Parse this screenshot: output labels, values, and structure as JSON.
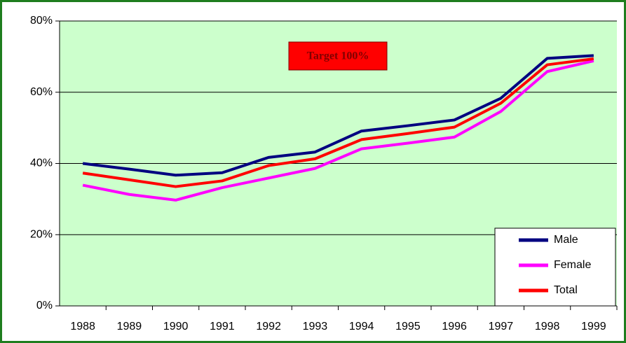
{
  "chart_data": {
    "type": "line",
    "annotation": "Target 100%",
    "categories": [
      "1988",
      "1989",
      "1990",
      "1991",
      "1992",
      "1993",
      "1994",
      "1995",
      "1996",
      "1997",
      "1998",
      "1999"
    ],
    "series": [
      {
        "name": "Male",
        "color": "#000080",
        "values": [
          40.0,
          38.4,
          36.7,
          37.4,
          41.7,
          43.2,
          49.1,
          50.6,
          52.2,
          58.3,
          69.5,
          70.3
        ]
      },
      {
        "name": "Female",
        "color": "#ff00ff",
        "values": [
          33.9,
          31.3,
          29.7,
          33.2,
          35.9,
          38.6,
          44.1,
          45.7,
          47.4,
          54.6,
          65.8,
          68.8
        ]
      },
      {
        "name": "Total",
        "color": "#ff0000",
        "values": [
          37.3,
          35.4,
          33.5,
          35.1,
          39.4,
          41.3,
          46.7,
          48.4,
          50.2,
          56.9,
          67.7,
          69.4
        ]
      }
    ],
    "ylim": [
      0,
      80
    ],
    "yticks": [
      {
        "value": 0,
        "label": "0%"
      },
      {
        "value": 20,
        "label": "20%"
      },
      {
        "value": 40,
        "label": "40%"
      },
      {
        "value": 60,
        "label": "60%"
      },
      {
        "value": 80,
        "label": "80%"
      }
    ],
    "grid": true,
    "legend": "lower right",
    "plot_background": "#ccffcc"
  }
}
